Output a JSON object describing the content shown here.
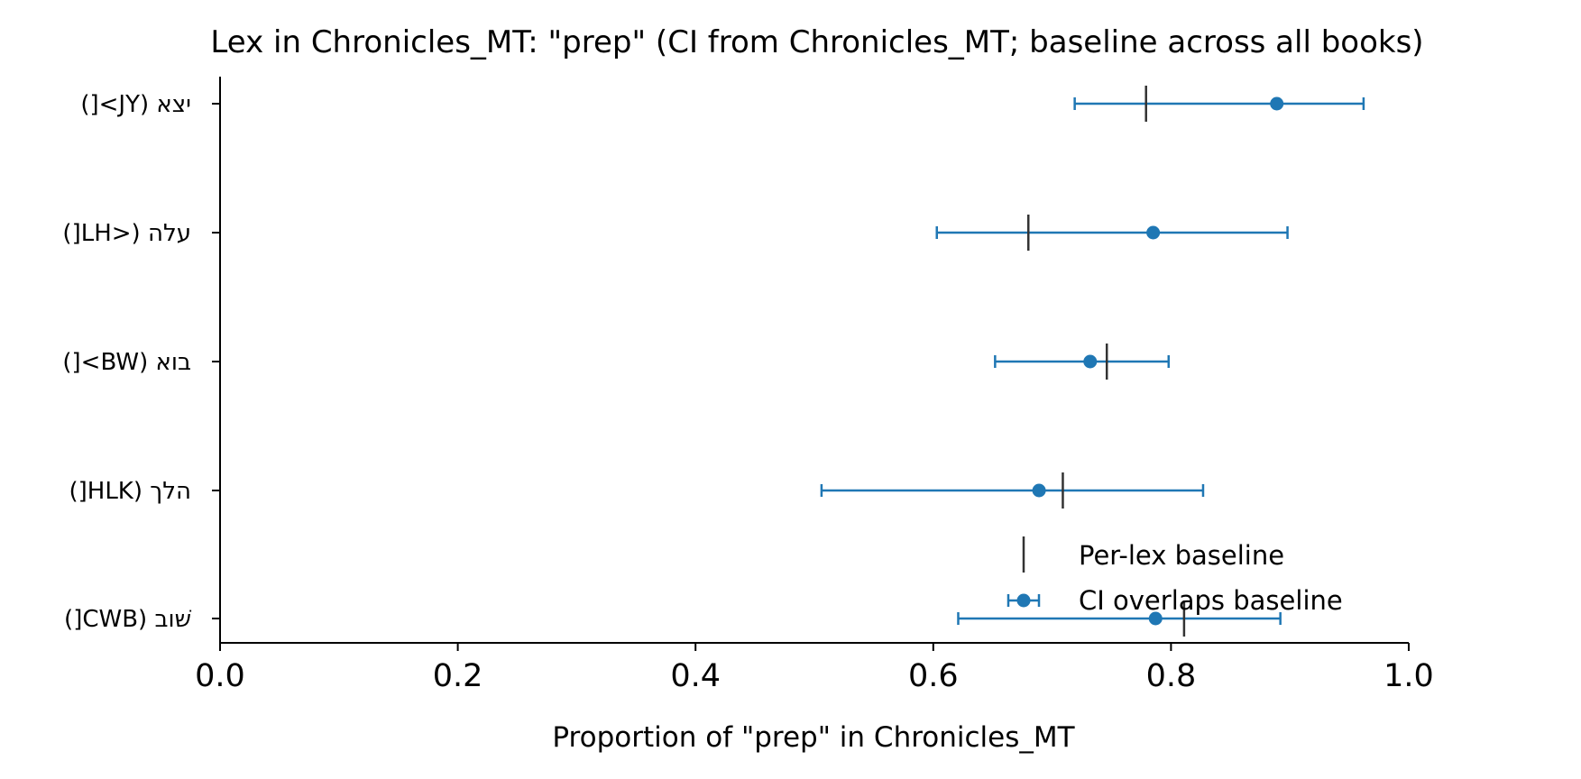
{
  "chart_data": {
    "type": "errorbar",
    "title": "Lex in Chronicles_MT: \"prep\" (CI from Chronicles_MT; baseline across all books)",
    "xlabel": "Proportion of \"prep\" in Chronicles_MT",
    "ylabel": "",
    "xlim": [
      0.0,
      1.0
    ],
    "xticks": [
      "0.0",
      "0.2",
      "0.4",
      "0.6",
      "0.8",
      "1.0"
    ],
    "categories": [
      "יצא (JY>[)",
      "עלה (<LH[)",
      "בוא (BW>[)",
      "הלך (HLK[)",
      "שׁוב (CWB[)"
    ],
    "series": [
      {
        "name": "CI overlaps baseline",
        "color": "#1f77b4",
        "values": [
          0.889,
          0.785,
          0.732,
          0.689,
          0.787
        ],
        "ci_low": [
          0.719,
          0.603,
          0.652,
          0.506,
          0.621
        ],
        "ci_high": [
          0.962,
          0.898,
          0.798,
          0.827,
          0.892
        ]
      },
      {
        "name": "Per-lex baseline",
        "color": "#333333",
        "values": [
          0.779,
          0.68,
          0.746,
          0.709,
          0.811
        ]
      }
    ],
    "legend_position": "lower-right",
    "grid": false
  }
}
